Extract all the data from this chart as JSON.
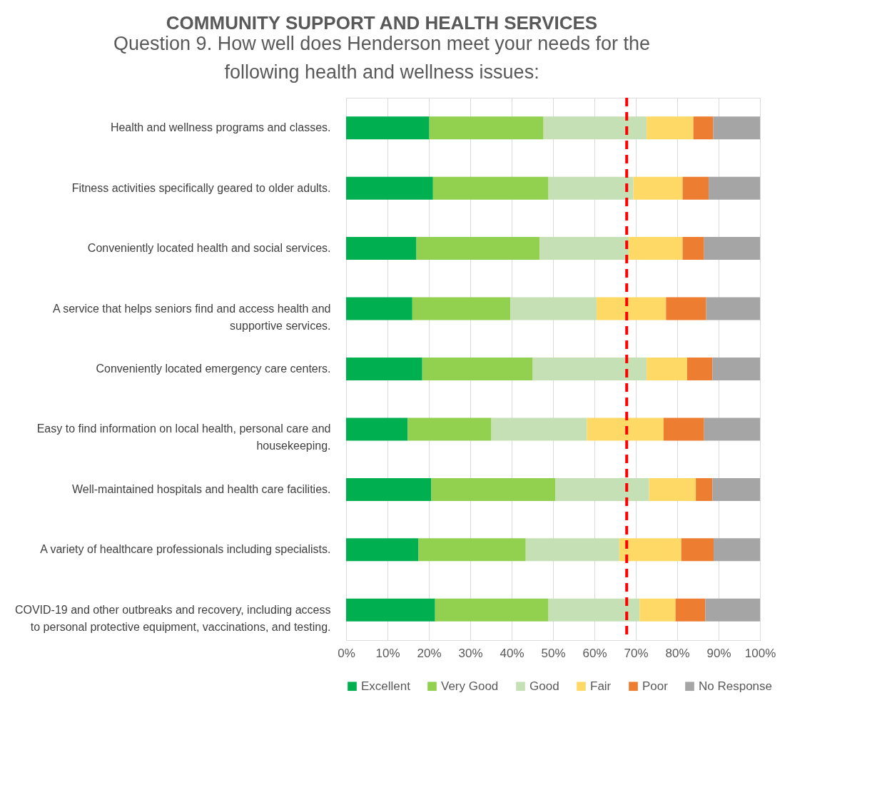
{
  "chart_data": {
    "type": "bar",
    "orientation": "horizontal",
    "stacked": true,
    "title": "COMMUNITY SUPPORT AND HEALTH SERVICES",
    "subtitle": "Question 9. How well does Henderson meet your needs for the following health and wellness issues:",
    "categories": [
      "Health and wellness programs and classes.",
      "Fitness activities specifically geared to older adults.",
      "Conveniently located health and social services.",
      "A service that helps seniors find and access health and supportive services.",
      "Conveniently located emergency care centers.",
      "Easy to find information on local health, personal care and housekeeping.",
      "Well-maintained hospitals and health care facilities.",
      "A variety of healthcare professionals including specialists.",
      "COVID-19 and other outbreaks and recovery, including access to personal protective equipment, vaccinations, and testing."
    ],
    "series": [
      {
        "name": "Excellent",
        "color": "#00b050",
        "values": [
          20.1,
          21.0,
          17.0,
          16.0,
          18.4,
          14.9,
          20.6,
          17.5,
          21.5
        ]
      },
      {
        "name": "Very Good",
        "color": "#92d050",
        "values": [
          27.6,
          27.9,
          29.8,
          23.7,
          26.7,
          20.2,
          30.0,
          25.9,
          27.4
        ]
      },
      {
        "name": "Good",
        "color": "#c5e0b4",
        "values": [
          24.9,
          20.5,
          21.5,
          20.8,
          27.5,
          23.1,
          22.6,
          22.6,
          22.0
        ]
      },
      {
        "name": "Fair",
        "color": "#ffd966",
        "values": [
          11.3,
          11.9,
          13.0,
          16.8,
          9.8,
          18.5,
          11.3,
          15.0,
          8.7
        ]
      },
      {
        "name": "Poor",
        "color": "#ed7d31",
        "values": [
          4.8,
          6.3,
          5.2,
          9.7,
          6.1,
          9.8,
          4.0,
          7.8,
          7.2
        ]
      },
      {
        "name": "No Response",
        "color": "#a5a5a5",
        "values": [
          11.3,
          12.4,
          13.5,
          13.0,
          11.5,
          13.5,
          11.5,
          11.2,
          13.2
        ]
      }
    ],
    "xlim": [
      0,
      100
    ],
    "xticks": [
      {
        "value": 0,
        "label": "0%"
      },
      {
        "value": 10,
        "label": "10%"
      },
      {
        "value": 20,
        "label": "20%"
      },
      {
        "value": 30,
        "label": "30%"
      },
      {
        "value": 40,
        "label": "40%"
      },
      {
        "value": 50,
        "label": "50%"
      },
      {
        "value": 60,
        "label": "60%"
      },
      {
        "value": 70,
        "label": "70%"
      },
      {
        "value": 80,
        "label": "80%"
      },
      {
        "value": 90,
        "label": "90%"
      },
      {
        "value": 100,
        "label": "100%"
      }
    ],
    "ref_lines": [
      {
        "axis": "x",
        "value": 67.8,
        "color": "#ff0000",
        "line_style": "dashed"
      }
    ],
    "grid": "x",
    "legend": "bottom"
  }
}
